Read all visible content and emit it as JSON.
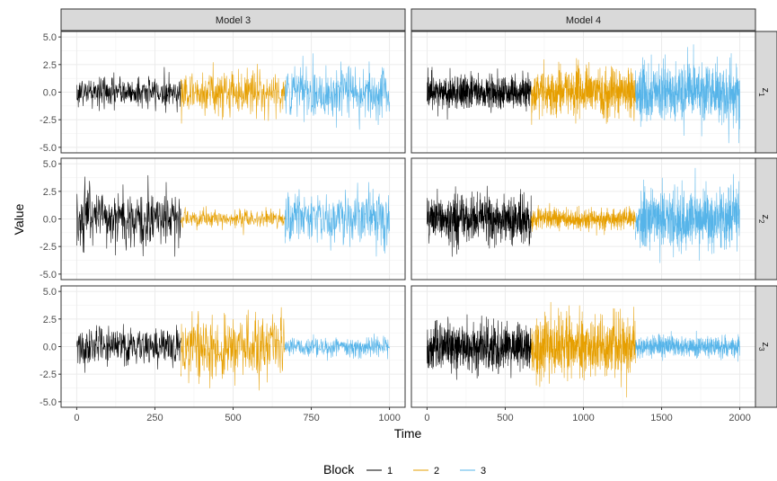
{
  "chart_data": {
    "type": "line",
    "xlabel": "Time",
    "ylabel": "Value",
    "ylim": [
      -5,
      5
    ],
    "y_ticks": [
      "-5.0",
      "-2.5",
      "0.0",
      "2.5",
      "5.0"
    ],
    "columns": [
      {
        "label": "Model 3",
        "xlim": [
          0,
          1000
        ],
        "x_ticks": [
          "0",
          "250",
          "500",
          "750",
          "1000"
        ],
        "block_breaks": [
          0,
          333,
          666,
          1000
        ],
        "n_points": 1000
      },
      {
        "label": "Model 4",
        "xlim": [
          0,
          2000
        ],
        "x_ticks": [
          "0",
          "500",
          "1000",
          "1500",
          "2000"
        ],
        "block_breaks": [
          0,
          666,
          1333,
          2000
        ],
        "n_points": 2000
      }
    ],
    "rows": [
      {
        "label": "z",
        "sub": "1"
      },
      {
        "label": "z",
        "sub": "2"
      },
      {
        "label": "z",
        "sub": "3"
      }
    ],
    "amplitude_sd": {
      "Model 3": [
        [
          0.7,
          1.0,
          1.25
        ],
        [
          1.25,
          0.45,
          1.25
        ],
        [
          0.85,
          1.35,
          0.45
        ]
      ],
      "Model 4": [
        [
          0.75,
          1.05,
          1.3
        ],
        [
          1.05,
          0.45,
          1.35
        ],
        [
          1.05,
          1.35,
          0.45
        ]
      ]
    },
    "legend": {
      "title": "Block",
      "position": "bottom",
      "entries": [
        {
          "label": "1",
          "color": "#000000"
        },
        {
          "label": "2",
          "color": "#E69F00"
        },
        {
          "label": "3",
          "color": "#56B4E9"
        }
      ]
    },
    "grid": true
  }
}
